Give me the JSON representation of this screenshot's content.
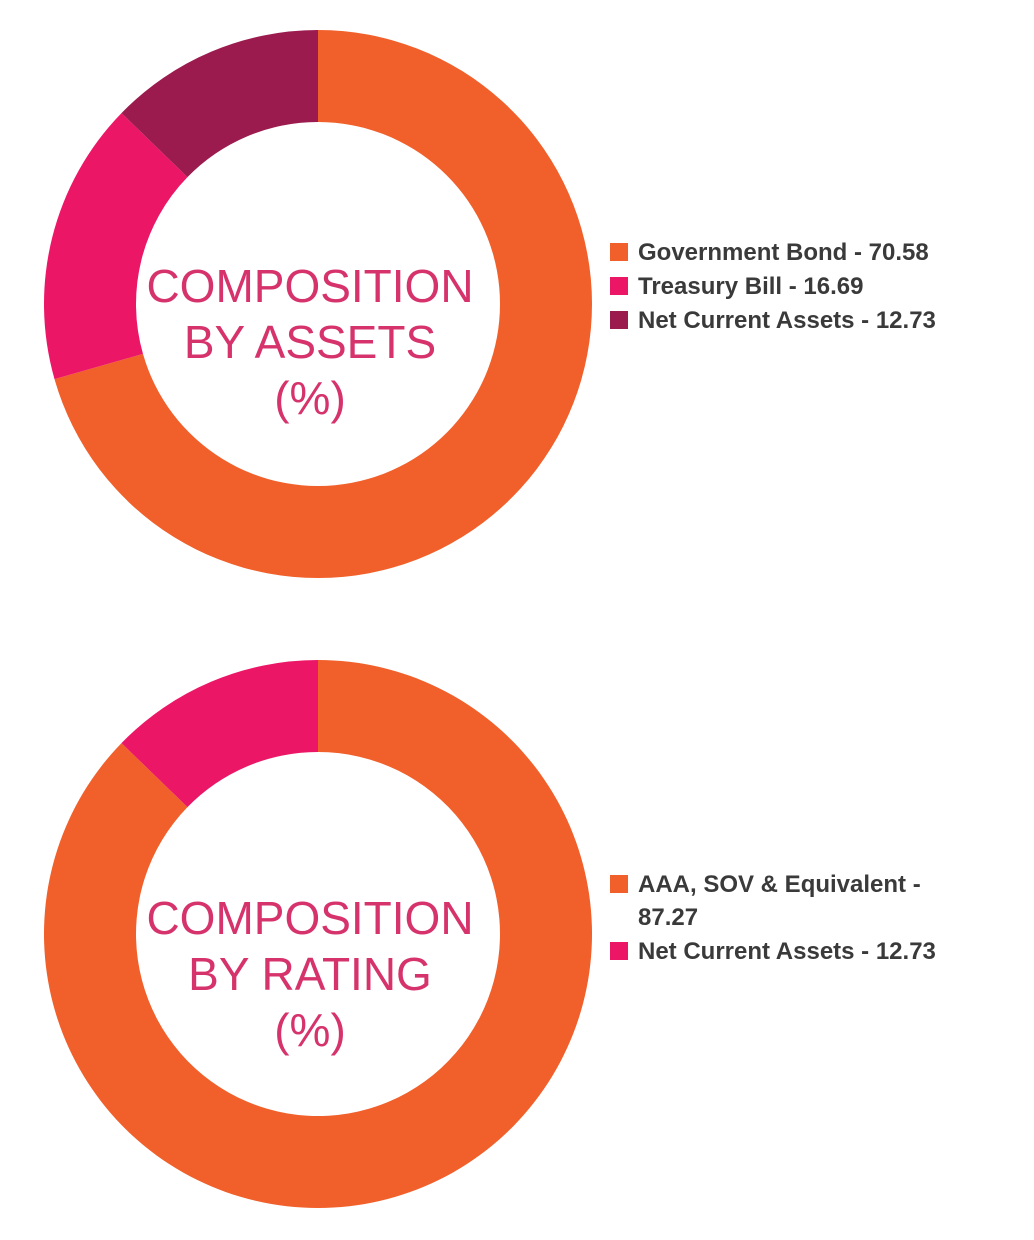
{
  "chart_data": [
    {
      "type": "pie",
      "subtype": "donut",
      "title": [
        "COMPOSITION",
        "BY ASSETS",
        "(%)"
      ],
      "slices": [
        {
          "label": "Government Bond - 70.58",
          "value": 70.58,
          "color": "#f15f2a"
        },
        {
          "label": "Treasury Bill - 16.69",
          "value": 16.69,
          "color": "#ec1667"
        },
        {
          "label": "Net Current Assets - 12.73",
          "value": 12.73,
          "color": "#9b1b4f"
        }
      ],
      "legend_position": "right"
    },
    {
      "type": "pie",
      "subtype": "donut",
      "title": [
        "COMPOSITION",
        "BY RATING",
        "(%)"
      ],
      "slices": [
        {
          "label": "AAA, SOV & Equivalent - 87.27",
          "value": 87.27,
          "color": "#f15f2a"
        },
        {
          "label": "Net Current Assets - 12.73",
          "value": 12.73,
          "color": "#ec1667"
        }
      ],
      "legend_position": "right"
    }
  ]
}
